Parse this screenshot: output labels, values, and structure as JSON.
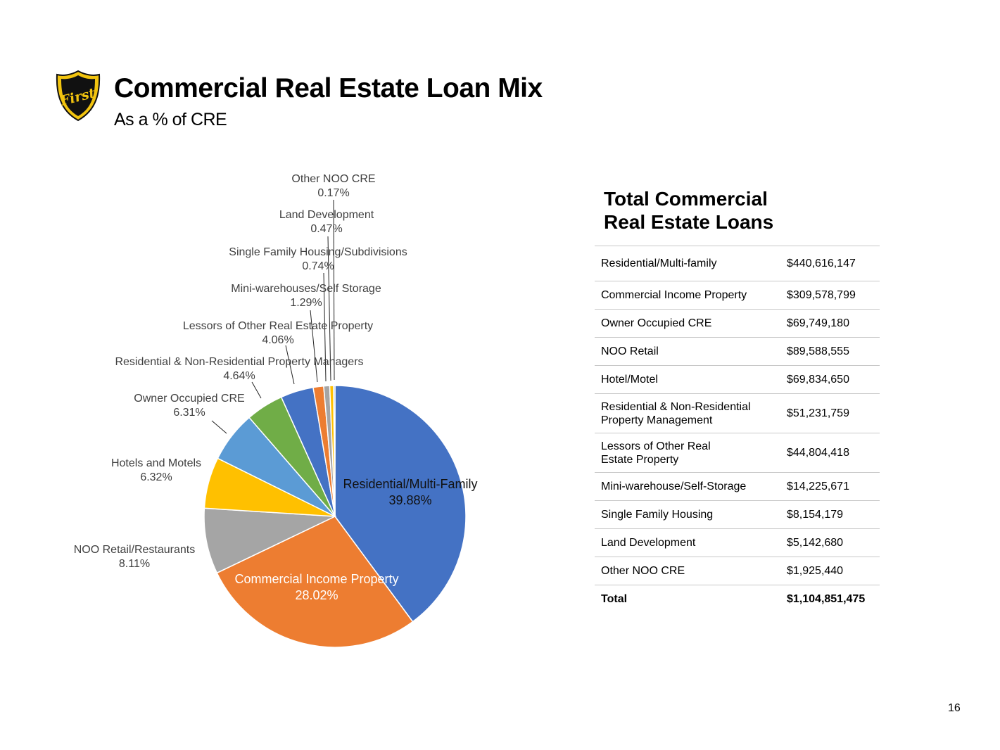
{
  "header": {
    "logo_text": "First",
    "title": "Commercial Real Estate Loan Mix",
    "subtitle": "As a % of CRE"
  },
  "chart_data": {
    "type": "pie",
    "slices": [
      {
        "label": "Residential/Multi-Family",
        "value": 39.88,
        "pct_label": "39.88%",
        "color": "#4472C4"
      },
      {
        "label": "Commercial Income Property",
        "value": 28.02,
        "pct_label": "28.02%",
        "color": "#ED7D31"
      },
      {
        "label": "NOO Retail/Restaurants",
        "value": 8.11,
        "pct_label": "8.11%",
        "color": "#A5A5A5"
      },
      {
        "label": "Hotels and Motels",
        "value": 6.32,
        "pct_label": "6.32%",
        "color": "#FFC000"
      },
      {
        "label": "Owner Occupied CRE",
        "value": 6.31,
        "pct_label": "6.31%",
        "color": "#5B9BD5"
      },
      {
        "label": "Residential & Non-Residential Property Managers",
        "value": 4.64,
        "pct_label": "4.64%",
        "color": "#70AD47"
      },
      {
        "label": "Lessors of Other Real Estate Property",
        "value": 4.06,
        "pct_label": "4.06%",
        "color": "#4472C4"
      },
      {
        "label": "Mini-warehouses/Self Storage",
        "value": 1.29,
        "pct_label": "1.29%",
        "color": "#ED7D31"
      },
      {
        "label": "Single Family Housing/Subdivisions",
        "value": 0.74,
        "pct_label": "0.74%",
        "color": "#A5A5A5"
      },
      {
        "label": "Land Development",
        "value": 0.47,
        "pct_label": "0.47%",
        "color": "#FFC000"
      },
      {
        "label": "Other NOO CRE",
        "value": 0.17,
        "pct_label": "0.17%",
        "color": "#5B9BD5"
      }
    ]
  },
  "table": {
    "title_line1": "Total Commercial",
    "title_line2": "Real Estate Loans",
    "rows": [
      {
        "label": "Residential/Multi-family",
        "amount": "$440,616,147"
      },
      {
        "label": "Commercial Income Property",
        "amount": "$309,578,799"
      },
      {
        "label": "Owner Occupied CRE",
        "amount": "$69,749,180"
      },
      {
        "label": "NOO Retail",
        "amount": "$89,588,555"
      },
      {
        "label": "Hotel/Motel",
        "amount": "$69,834,650"
      },
      {
        "label": "Residential & Non-Residential",
        "label2": "Property Management",
        "amount": "$51,231,759"
      },
      {
        "label": "Lessors of Other Real",
        "label2": "Estate Property",
        "amount": "$44,804,418"
      },
      {
        "label": "Mini-warehouse/Self-Storage",
        "amount": "$14,225,671"
      },
      {
        "label": "Single Family Housing",
        "amount": "$8,154,179"
      },
      {
        "label": "Land Development",
        "amount": "$5,142,680"
      },
      {
        "label": "Other NOO CRE",
        "amount": "$1,925,440"
      }
    ],
    "total_label": "Total",
    "total_amount": "$1,104,851,475"
  },
  "page_number": "16"
}
